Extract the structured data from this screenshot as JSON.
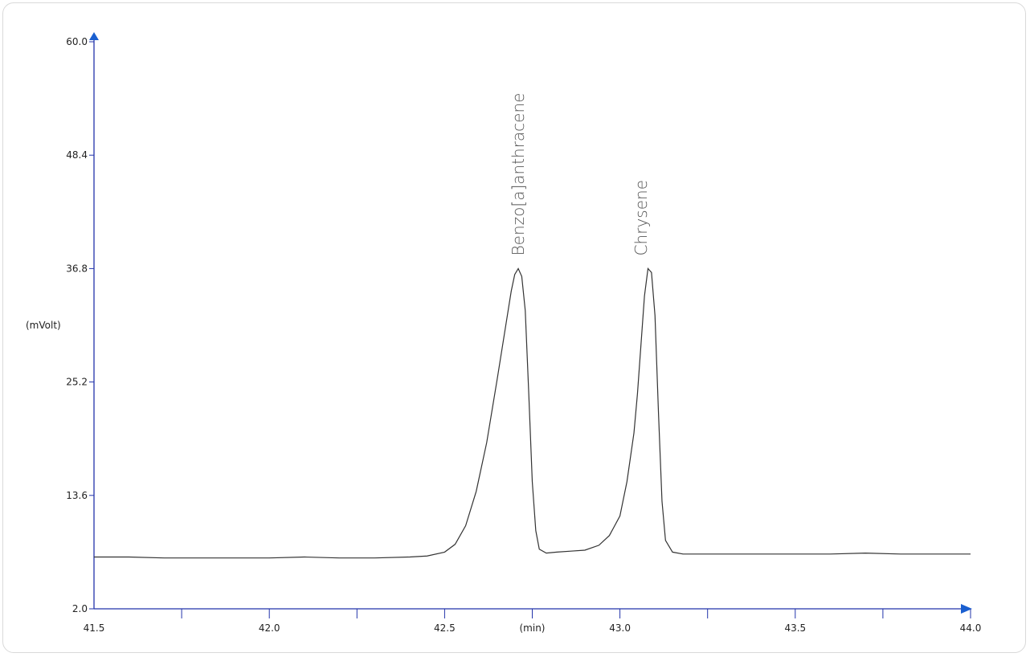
{
  "chart_data": {
    "type": "line",
    "title": "",
    "xlabel": "(min)",
    "ylabel": "(mVolt)",
    "xlim": [
      41.5,
      44.0
    ],
    "ylim": [
      2.0,
      60.0
    ],
    "x_ticks": [
      41.5,
      42.0,
      42.5,
      43.0,
      43.5,
      44.0
    ],
    "x_tick_labels": [
      "41.5",
      "42.0",
      "42.5",
      "43.0",
      "43.5",
      "44.0"
    ],
    "x_minor_ticks": [
      41.75,
      42.25,
      42.75,
      43.25,
      43.75
    ],
    "y_ticks": [
      2.0,
      13.6,
      25.2,
      36.8,
      48.4,
      60.0
    ],
    "y_tick_labels": [
      "2.0",
      "13.6",
      "25.2",
      "36.8",
      "48.4",
      "60.0"
    ],
    "grid": false,
    "axis_color": "#2233aa",
    "line_color": "#333333",
    "series": [
      {
        "x": [
          41.5,
          41.6,
          41.7,
          41.8,
          41.9,
          42.0,
          42.1,
          42.2,
          42.3,
          42.4,
          42.45,
          42.5,
          42.53,
          42.56,
          42.59,
          42.62,
          42.65,
          42.67,
          42.69,
          42.7,
          42.71,
          42.72,
          42.73,
          42.74,
          42.75,
          42.76,
          42.77,
          42.79,
          42.82,
          42.86,
          42.9,
          42.94,
          42.97,
          43.0,
          43.02,
          43.04,
          43.05,
          43.06,
          43.07,
          43.08,
          43.09,
          43.1,
          43.11,
          43.12,
          43.13,
          43.15,
          43.18,
          43.22,
          43.3,
          43.4,
          43.5,
          43.6,
          43.7,
          43.8,
          43.9,
          44.0
        ],
        "values": [
          7.3,
          7.3,
          7.2,
          7.2,
          7.2,
          7.2,
          7.3,
          7.2,
          7.2,
          7.3,
          7.4,
          7.8,
          8.6,
          10.5,
          14.0,
          19.0,
          25.5,
          30.0,
          34.5,
          36.2,
          36.8,
          36.0,
          32.5,
          24.0,
          15.0,
          10.0,
          8.1,
          7.7,
          7.8,
          7.9,
          8.0,
          8.5,
          9.5,
          11.5,
          15.0,
          20.0,
          24.0,
          29.0,
          34.0,
          36.8,
          36.4,
          32.0,
          22.0,
          13.0,
          9.0,
          7.8,
          7.6,
          7.6,
          7.6,
          7.6,
          7.6,
          7.6,
          7.7,
          7.6,
          7.6,
          7.6
        ]
      }
    ],
    "annotations": [
      {
        "text": "Benzo[a]anthracene",
        "x": 42.71,
        "y": 36.8
      },
      {
        "text": "Chrysene",
        "x": 43.06,
        "y": 36.8
      }
    ]
  }
}
